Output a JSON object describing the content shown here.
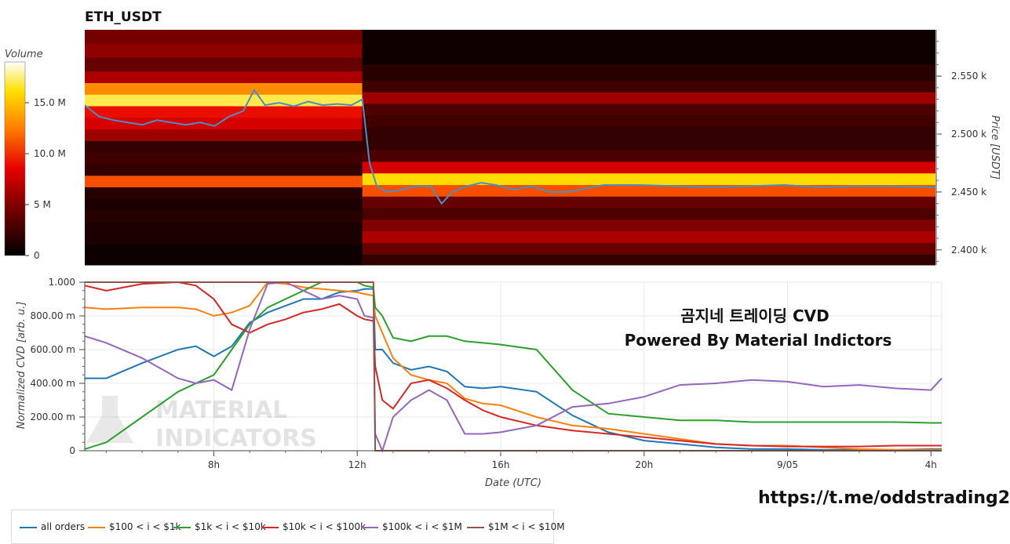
{
  "title": "ETH_USDT",
  "link_text": "https://t.me/oddstrading2",
  "watermark": {
    "line1": "MATERIAL",
    "line2": "INDICATORS"
  },
  "chart_data": [
    {
      "type": "heatmap",
      "title": "ETH_USDT",
      "ylabel": "Price [USDT]",
      "yticks": [
        "2.550 k",
        "2.500 k",
        "2.450 k",
        "2.400 k"
      ],
      "ytick_values": [
        2550,
        2500,
        2450,
        2400
      ],
      "ylim": [
        2387,
        2590
      ],
      "xlim": [
        4.6,
        28.2
      ],
      "colorbar": {
        "label": "Volume",
        "ticks": [
          "15.0 M",
          "10.0 M",
          "5 M",
          "0"
        ],
        "tick_values": [
          15,
          10,
          5,
          0
        ],
        "max": 19,
        "unit": "M"
      },
      "heat_bands_before": [
        {
          "from": 2578,
          "to": 2590,
          "value": 4.5
        },
        {
          "from": 2566,
          "to": 2578,
          "value": 5.5
        },
        {
          "from": 2554,
          "to": 2566,
          "value": 4
        },
        {
          "from": 2544,
          "to": 2554,
          "value": 6.5
        },
        {
          "from": 2534,
          "to": 2544,
          "value": 13
        },
        {
          "from": 2524,
          "to": 2534,
          "value": 17
        },
        {
          "from": 2514,
          "to": 2524,
          "value": 9
        },
        {
          "from": 2504,
          "to": 2514,
          "value": 8
        },
        {
          "from": 2494,
          "to": 2504,
          "value": 6
        },
        {
          "from": 2484,
          "to": 2494,
          "value": 2
        },
        {
          "from": 2474,
          "to": 2484,
          "value": 2.5
        },
        {
          "from": 2464,
          "to": 2474,
          "value": 2
        },
        {
          "from": 2454,
          "to": 2464,
          "value": 11
        },
        {
          "from": 2444,
          "to": 2454,
          "value": 1.5
        },
        {
          "from": 2434,
          "to": 2444,
          "value": 1
        },
        {
          "from": 2424,
          "to": 2434,
          "value": 1.5
        },
        {
          "from": 2414,
          "to": 2424,
          "value": 1
        },
        {
          "from": 2404,
          "to": 2414,
          "value": 1
        },
        {
          "from": 2387,
          "to": 2404,
          "value": 0.5
        }
      ],
      "heat_bands_after": [
        {
          "from": 2560,
          "to": 2590,
          "value": 0.6
        },
        {
          "from": 2546,
          "to": 2560,
          "value": 1.5
        },
        {
          "from": 2536,
          "to": 2546,
          "value": 2.5
        },
        {
          "from": 2526,
          "to": 2536,
          "value": 6
        },
        {
          "from": 2516,
          "to": 2526,
          "value": 3
        },
        {
          "from": 2506,
          "to": 2516,
          "value": 2.5
        },
        {
          "from": 2496,
          "to": 2506,
          "value": 2
        },
        {
          "from": 2486,
          "to": 2496,
          "value": 2
        },
        {
          "from": 2476,
          "to": 2486,
          "value": 3
        },
        {
          "from": 2466,
          "to": 2476,
          "value": 8
        },
        {
          "from": 2456,
          "to": 2466,
          "value": 16
        },
        {
          "from": 2446,
          "to": 2456,
          "value": 11
        },
        {
          "from": 2436,
          "to": 2446,
          "value": 4
        },
        {
          "from": 2426,
          "to": 2436,
          "value": 3
        },
        {
          "from": 2416,
          "to": 2426,
          "value": 5
        },
        {
          "from": 2406,
          "to": 2416,
          "value": 6.5
        },
        {
          "from": 2396,
          "to": 2406,
          "value": 4
        },
        {
          "from": 2387,
          "to": 2396,
          "value": 2
        }
      ],
      "break_x": 12.3,
      "price_x": [
        4.6,
        5.0,
        5.4,
        5.8,
        6.2,
        6.6,
        7.0,
        7.4,
        7.8,
        8.2,
        8.6,
        9.0,
        9.3,
        9.6,
        10.0,
        10.4,
        10.8,
        11.2,
        11.6,
        12.0,
        12.3,
        12.5,
        12.7,
        13.0,
        13.4,
        13.8,
        14.2,
        14.5,
        14.8,
        15.2,
        15.6,
        16.0,
        16.5,
        17.0,
        17.5,
        18.0,
        18.5,
        19.0,
        20.0,
        21.0,
        22.0,
        23.0,
        24.0,
        25.0,
        26.0,
        27.0,
        28.2
      ],
      "price_y": [
        2525,
        2515,
        2512,
        2510,
        2508,
        2512,
        2510,
        2508,
        2510,
        2507,
        2515,
        2520,
        2538,
        2525,
        2527,
        2524,
        2528,
        2525,
        2526,
        2525,
        2530,
        2475,
        2455,
        2450,
        2452,
        2455,
        2455,
        2440,
        2450,
        2455,
        2458,
        2456,
        2452,
        2455,
        2450,
        2450,
        2453,
        2456,
        2456,
        2455,
        2454,
        2455,
        2456,
        2454,
        2455,
        2455,
        2454
      ]
    },
    {
      "type": "line",
      "xlabel": "Date (UTC)",
      "ylabel": "Normalized CVD [arb. u.]",
      "xticks": [
        "8h",
        "12h",
        "16h",
        "20h",
        "9/05",
        "4h"
      ],
      "xtick_values": [
        8,
        12,
        16,
        20,
        24,
        28
      ],
      "xlim": [
        4.4,
        28.3
      ],
      "yticks": [
        "1.000",
        "800.00 m",
        "600.00 m",
        "400.00 m",
        "200.00 m",
        "0"
      ],
      "ytick_values": [
        1000,
        800,
        600,
        400,
        200,
        0
      ],
      "ylim": [
        0,
        1000
      ],
      "grid": true,
      "legend_position": "bottom",
      "annotation_line1": "곰지네 트레이딩 CVD",
      "annotation_line2": "Powered By Material Indictors",
      "x": [
        4.4,
        5.0,
        6.0,
        7.0,
        7.5,
        8.0,
        8.5,
        9.0,
        9.5,
        10.0,
        10.5,
        11.0,
        11.5,
        12.0,
        12.2,
        12.45,
        12.5,
        12.7,
        13.0,
        13.5,
        14.0,
        14.5,
        15.0,
        15.5,
        16.0,
        17.0,
        18.0,
        19.0,
        20.0,
        21.0,
        22.0,
        23.0,
        24.0,
        25.0,
        26.0,
        27.0,
        28.0,
        28.3
      ],
      "series": [
        {
          "name": "all orders",
          "color": "#1f77b4",
          "values": [
            430,
            430,
            520,
            600,
            620,
            560,
            620,
            760,
            820,
            860,
            900,
            900,
            940,
            950,
            960,
            960,
            600,
            600,
            520,
            480,
            500,
            470,
            380,
            370,
            380,
            350,
            210,
            110,
            60,
            40,
            20,
            10,
            10,
            5,
            5,
            5,
            10,
            10
          ]
        },
        {
          "name": "$100 < i < $1k",
          "color": "#ff7f0e",
          "values": [
            850,
            840,
            850,
            850,
            840,
            800,
            820,
            860,
            1000,
            990,
            970,
            960,
            950,
            940,
            930,
            920,
            800,
            700,
            550,
            450,
            420,
            400,
            310,
            280,
            270,
            200,
            150,
            130,
            100,
            70,
            40,
            30,
            30,
            20,
            10,
            5,
            5,
            5
          ]
        },
        {
          "name": "$1k < i < $10k",
          "color": "#2ca02c",
          "values": [
            10,
            50,
            200,
            350,
            400,
            450,
            600,
            750,
            850,
            900,
            950,
            1000,
            1000,
            1000,
            980,
            970,
            850,
            800,
            670,
            650,
            680,
            680,
            650,
            640,
            630,
            600,
            360,
            220,
            200,
            180,
            180,
            170,
            170,
            170,
            170,
            170,
            165,
            165
          ]
        },
        {
          "name": "$10k < i < $100k",
          "color": "#d62728",
          "values": [
            980,
            950,
            990,
            1000,
            980,
            900,
            750,
            700,
            750,
            780,
            820,
            840,
            870,
            800,
            780,
            770,
            500,
            300,
            250,
            400,
            420,
            370,
            300,
            240,
            200,
            150,
            120,
            100,
            80,
            60,
            40,
            30,
            25,
            25,
            25,
            30,
            30,
            30
          ]
        },
        {
          "name": "$100k < i < $1M",
          "color": "#9467bd",
          "values": [
            680,
            640,
            550,
            430,
            400,
            420,
            360,
            720,
            990,
            1000,
            950,
            900,
            920,
            900,
            800,
            790,
            100,
            0,
            200,
            300,
            360,
            300,
            100,
            100,
            110,
            150,
            260,
            280,
            320,
            390,
            400,
            420,
            410,
            380,
            390,
            370,
            360,
            430
          ]
        },
        {
          "name": "$1M < i < $10M",
          "color": "#8c564b",
          "values": [
            1000,
            1000,
            1000,
            1000,
            1000,
            1000,
            1000,
            1000,
            1000,
            1000,
            1000,
            1000,
            1000,
            1000,
            1000,
            1000,
            0,
            0,
            0,
            0,
            0,
            0,
            0,
            0,
            0,
            0,
            0,
            0,
            0,
            0,
            0,
            0,
            0,
            0,
            0,
            0,
            0,
            0
          ]
        }
      ]
    }
  ]
}
